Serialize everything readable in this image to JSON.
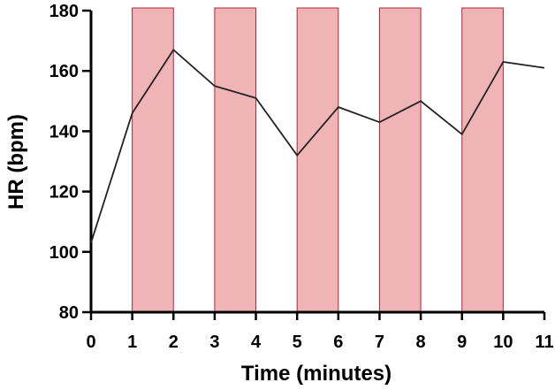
{
  "chart_data": {
    "type": "line",
    "xlabel": "Time (minutes)",
    "ylabel": "HR (bpm)",
    "xlim": [
      0,
      11
    ],
    "ylim": [
      80,
      180
    ],
    "x_ticks": [
      0,
      1,
      2,
      3,
      4,
      5,
      6,
      7,
      8,
      9,
      10,
      11
    ],
    "y_ticks": [
      80,
      100,
      120,
      140,
      160,
      180
    ],
    "grid": false,
    "series": [
      {
        "x": [
          0,
          1,
          2,
          3,
          4,
          5,
          6,
          7,
          8,
          9,
          10,
          11
        ],
        "values": [
          103,
          146,
          167,
          155,
          151,
          132,
          148,
          143,
          150,
          139,
          163,
          161
        ],
        "color": "#222222"
      }
    ],
    "shaded_intervals": [
      [
        1,
        2
      ],
      [
        3,
        4
      ],
      [
        5,
        6
      ],
      [
        7,
        8
      ],
      [
        9,
        10
      ]
    ],
    "shade_fill": "#f0b4b6",
    "shade_stroke": "#b3243a"
  }
}
